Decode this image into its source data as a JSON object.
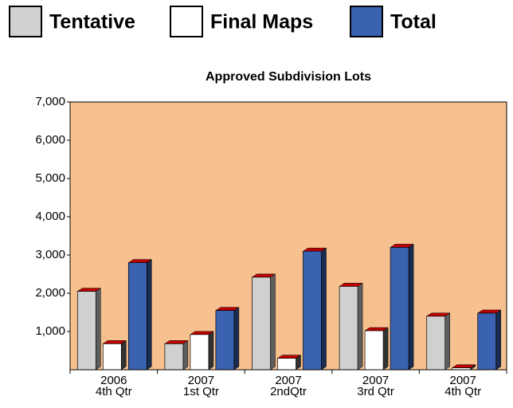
{
  "chart_data": {
    "type": "bar",
    "title": "Approved Subdivision Lots",
    "categories": [
      [
        "2006",
        "4th Qtr"
      ],
      [
        "2007",
        "1st Qtr"
      ],
      [
        "2007",
        "2ndQtr"
      ],
      [
        "2007",
        "3rd Qtr"
      ],
      [
        "2007",
        "4th Qtr"
      ]
    ],
    "series": [
      {
        "name": "Tentative",
        "color": "#d0d0d0",
        "values": [
          2050,
          680,
          2420,
          2180,
          1400
        ]
      },
      {
        "name": "Final Maps",
        "color": "#ffffff",
        "values": [
          680,
          920,
          300,
          1020,
          50
        ]
      },
      {
        "name": "Total",
        "color": "#3a62b0",
        "values": [
          2800,
          1550,
          3100,
          3200,
          1480
        ]
      }
    ],
    "ylim": [
      0,
      7000
    ],
    "yticks": [
      {
        "value": 1000,
        "label": "1,000"
      },
      {
        "value": 2000,
        "label": "2,000"
      },
      {
        "value": 3000,
        "label": "3,000"
      },
      {
        "value": 4000,
        "label": "4,000"
      },
      {
        "value": 5000,
        "label": "5,000"
      },
      {
        "value": 6000,
        "label": "6,000"
      },
      {
        "value": 7000,
        "label": "7,000"
      }
    ],
    "grid": false,
    "plot_background": "#f6c18f"
  }
}
